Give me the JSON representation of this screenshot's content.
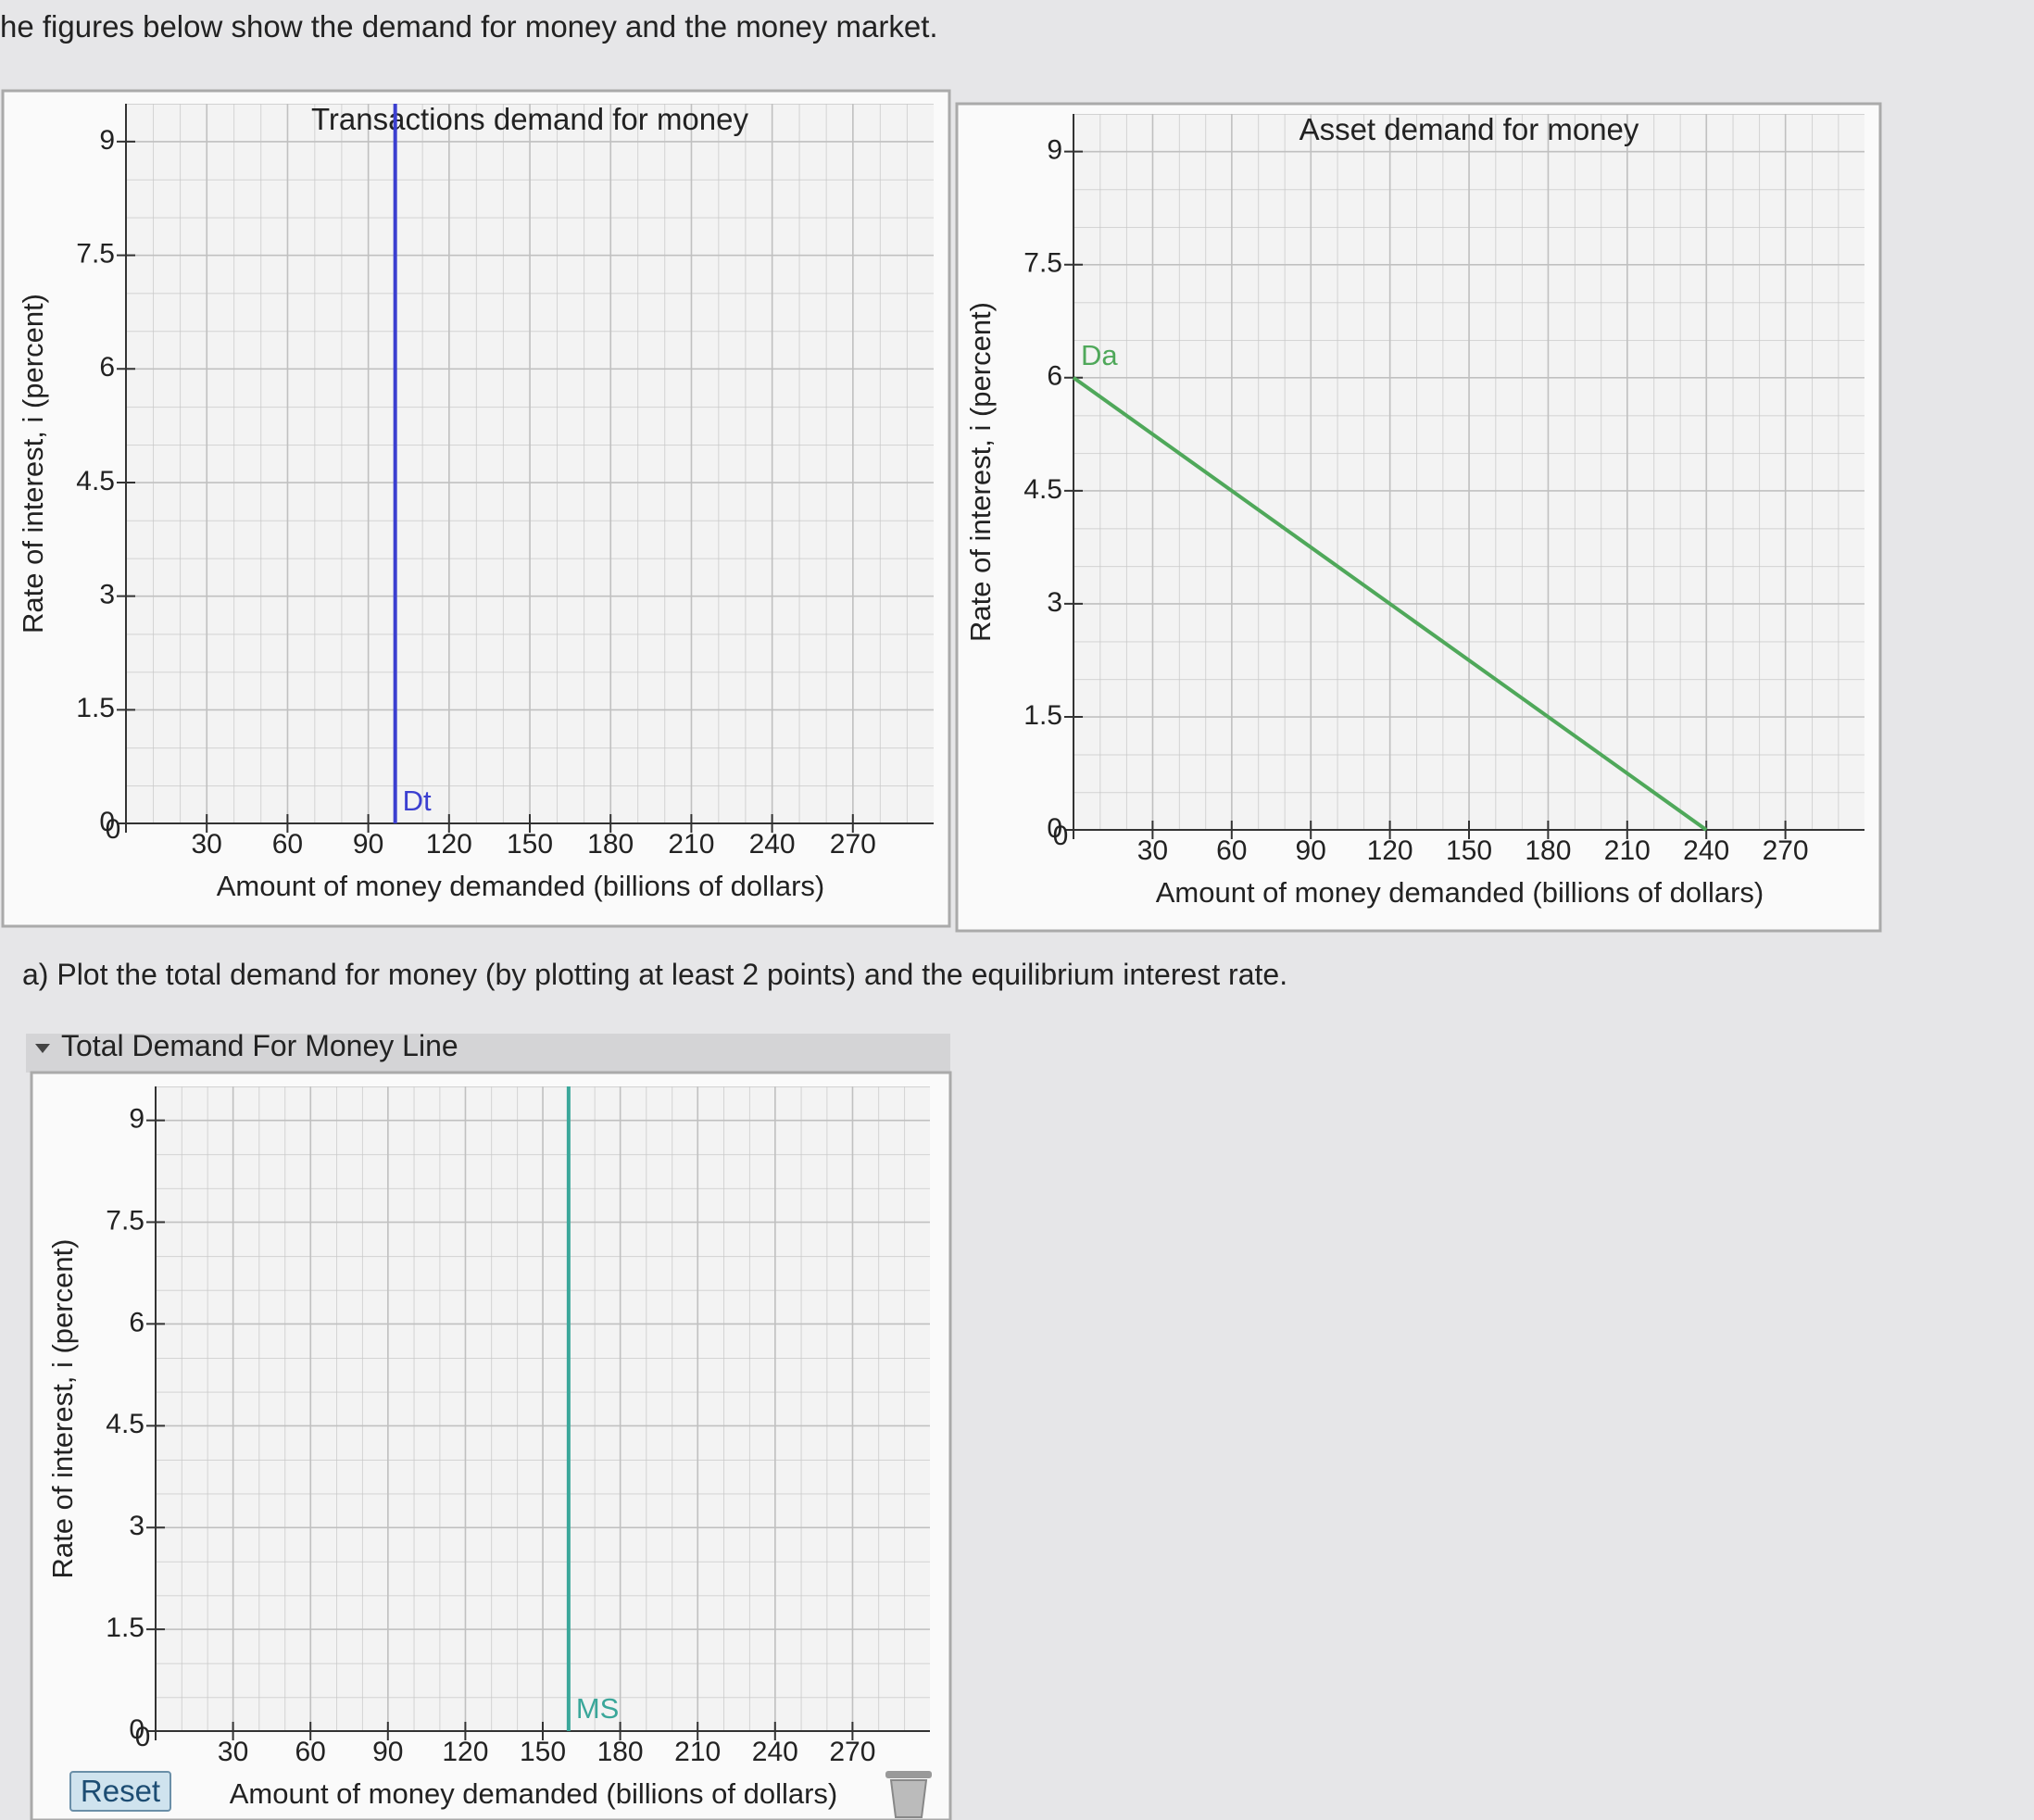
{
  "page": {
    "intro": "he figures below show the demand for money and the money market.",
    "question": "a) Plot the total demand for money (by plotting at least 2 points) and the equilibrium interest rate.",
    "panel_title": "Total Demand For Money Line",
    "reset": "Reset"
  },
  "chart_data": [
    {
      "type": "line",
      "title": "Transactions demand for money",
      "xlabel": "Amount of money demanded (billions of dollars)",
      "ylabel": "Rate of interest, i (percent)",
      "xlim": [
        0,
        300
      ],
      "ylim": [
        0,
        9.5
      ],
      "xticks": [
        0,
        30,
        60,
        90,
        120,
        150,
        180,
        210,
        240,
        270
      ],
      "yticks": [
        0,
        1.5,
        3,
        4.5,
        6,
        7.5,
        9
      ],
      "grid": true,
      "series": [
        {
          "name": "Dt",
          "color": "#3b3fd0",
          "x": [
            100,
            100
          ],
          "values": [
            0,
            9.5
          ]
        }
      ]
    },
    {
      "type": "line",
      "title": "Asset demand for money",
      "xlabel": "Amount of money demanded (billions of dollars)",
      "ylabel": "Rate of interest, i (percent)",
      "xlim": [
        0,
        300
      ],
      "ylim": [
        0,
        9.5
      ],
      "xticks": [
        0,
        30,
        60,
        90,
        120,
        150,
        180,
        210,
        240,
        270
      ],
      "yticks": [
        0,
        1.5,
        3,
        4.5,
        6,
        7.5,
        9
      ],
      "grid": true,
      "series": [
        {
          "name": "Da",
          "color": "#4fa85a",
          "x": [
            0,
            240
          ],
          "values": [
            6,
            0
          ]
        }
      ]
    },
    {
      "type": "line",
      "xlabel": "Amount of money demanded (billions of dollars)",
      "ylabel": "Rate of interest, i (percent)",
      "xlim": [
        0,
        300
      ],
      "ylim": [
        0,
        9.5
      ],
      "xticks": [
        0,
        30,
        60,
        90,
        120,
        150,
        180,
        210,
        240,
        270
      ],
      "yticks": [
        0,
        1.5,
        3,
        4.5,
        6,
        7.5,
        9
      ],
      "grid": true,
      "series": [
        {
          "name": "MS",
          "color": "#3aa79a",
          "x": [
            160,
            160
          ],
          "values": [
            0,
            9.5
          ]
        }
      ]
    }
  ]
}
